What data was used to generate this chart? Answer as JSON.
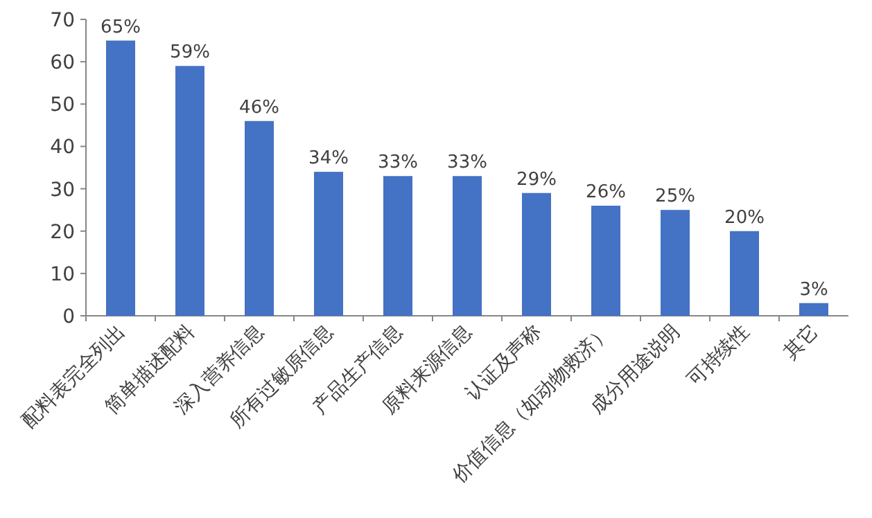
{
  "chart_data": {
    "type": "bar",
    "categories": [
      "配料表完全列出",
      "简单描述配料",
      "深入营养信息",
      "所有过敏原信息",
      "产品生产信息",
      "原料来源信息",
      "认证及声称",
      "价值信息（如动物救济）",
      "成分用途说明",
      "可持续性",
      "其它"
    ],
    "values": [
      65,
      59,
      46,
      34,
      33,
      33,
      29,
      26,
      25,
      20,
      3
    ],
    "value_labels": [
      "65%",
      "59%",
      "46%",
      "34%",
      "33%",
      "33%",
      "29%",
      "26%",
      "25%",
      "20%",
      "3%"
    ],
    "color": "#4472c4",
    "ylim": [
      0,
      70
    ],
    "yticks": [
      0,
      10,
      20,
      30,
      40,
      50,
      60,
      70
    ],
    "grid": false
  }
}
